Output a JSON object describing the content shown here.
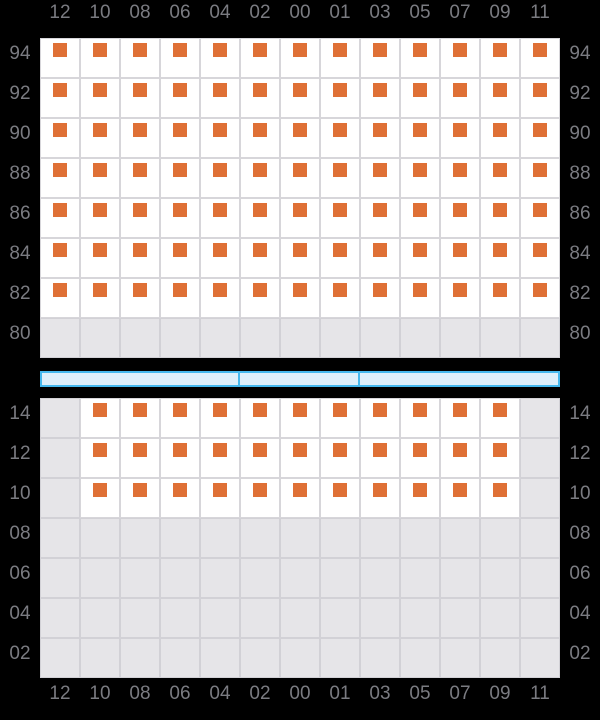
{
  "columns": [
    "12",
    "10",
    "08",
    "06",
    "04",
    "02",
    "00",
    "01",
    "03",
    "05",
    "07",
    "09",
    "11"
  ],
  "upper_grid": {
    "rows": [
      {
        "label": "94",
        "cells": "XXXXXXXXXXXXX"
      },
      {
        "label": "92",
        "cells": "XXXXXXXXXXXXX"
      },
      {
        "label": "90",
        "cells": "XXXXXXXXXXXXX"
      },
      {
        "label": "88",
        "cells": "XXXXXXXXXXXXX"
      },
      {
        "label": "86",
        "cells": "XXXXXXXXXXXXX"
      },
      {
        "label": "84",
        "cells": "XXXXXXXXXXXXX"
      },
      {
        "label": "82",
        "cells": "XXXXXXXXXXXXX"
      },
      {
        "label": "80",
        "cells": "............."
      }
    ]
  },
  "lower_grid": {
    "rows": [
      {
        "label": "14",
        "cells": ".XXXXXXXXXXX."
      },
      {
        "label": "12",
        "cells": ".XXXXXXXXXXX."
      },
      {
        "label": "10",
        "cells": ".XXXXXXXXXXX."
      },
      {
        "label": "08",
        "cells": "............."
      },
      {
        "label": "06",
        "cells": "............."
      },
      {
        "label": "04",
        "cells": "............."
      },
      {
        "label": "02",
        "cells": "............."
      }
    ]
  },
  "selector": {
    "segments": [
      {
        "span": 5
      },
      {
        "span": 3
      },
      {
        "span": 5
      }
    ]
  },
  "legend": {
    "cell_states": {
      "X": "filled-with-marker",
      ".": "disabled"
    }
  },
  "colors": {
    "background": "#000000",
    "label": "#7a7b81",
    "grid_line": "#d7d6da",
    "grid_line_disabled": "#d2d1d6",
    "cell_bg": "#ffffff",
    "disabled_bg": "#e6e5e8",
    "marker": "#df7036",
    "selector_border": "#45b8ee",
    "selector_fill": "#ddeffb"
  }
}
